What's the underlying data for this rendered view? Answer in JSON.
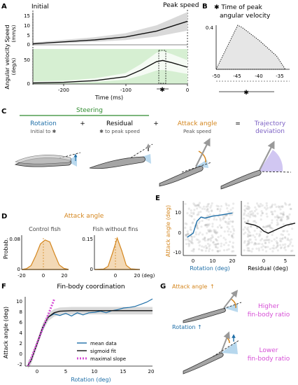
{
  "colors": {
    "orange": "#d4861e",
    "blue": "#1f6fa8",
    "green": "#2e8b2e",
    "purple": "#7d62c4",
    "magenta": "#d64fd6",
    "grey_band": "#d9d9d9",
    "green_band": "#d6efd2"
  },
  "panel_letters": {
    "a": "A",
    "b": "B",
    "c": "C",
    "d": "D",
    "e": "E",
    "f": "F",
    "g": "G"
  },
  "panel_a": {
    "initial_label": "Initial",
    "peak_label": "Peak speed",
    "speed_ylabel": "Speed",
    "speed_yunit": "(mm/s)",
    "speed_ticks": [
      "0",
      "5",
      "10",
      "15"
    ],
    "ang_ylabel": "Angular velocity",
    "ang_yunit": "(deg/s)",
    "ang_ticks": [
      "0",
      "50"
    ],
    "x_ticks": [
      "-200",
      "-100",
      "0"
    ],
    "xlabel": "Time (ms)",
    "marker": "✱"
  },
  "panel_b": {
    "title_line1": "✱ Time of peak",
    "title_line2": "angular velocity",
    "y_tick": "0.4",
    "x_ticks": [
      "-50",
      "-45",
      "-40",
      "-35"
    ],
    "marker": "✱"
  },
  "panel_c": {
    "steering": "Steering",
    "rotation": "Rotation",
    "rotation_sub": "Initial to ✱",
    "plus1": "+",
    "residual": "Residual",
    "residual_sub": "✱ to peak speed",
    "plus2": "+",
    "attack": "Attack angle",
    "attack_sub": "Peak speed",
    "equals": "=",
    "trajectory1": "Trajectory",
    "trajectory2": "deviation"
  },
  "panel_d": {
    "title": "Attack angle",
    "control": "Control fish",
    "without": "Fish without fins",
    "ylabel": "Probab.",
    "y1_tick": "0.08",
    "y2_tick": "0.15",
    "y_zero": "0",
    "x_ticks1": [
      "-20",
      "0",
      "20"
    ],
    "x_ticks2": [
      "0",
      "20"
    ],
    "xunit": "(deg)"
  },
  "panel_e": {
    "ylabel": "Attack angle (deg)",
    "y_ticks": [
      "10",
      "0",
      "-10"
    ],
    "xlabel1": "Rotation (deg)",
    "xlabel2": "Residual (deg)",
    "x_ticks1": [
      "0",
      "10",
      "20"
    ],
    "x_ticks2": [
      "0",
      "5"
    ]
  },
  "panel_f": {
    "title": "Fin-body coordination",
    "ylabel": "Attack angle (deg)",
    "y_ticks": [
      "10",
      "8",
      "6",
      "4",
      "2",
      "0",
      "-2"
    ],
    "x_ticks": [
      "0",
      "5",
      "10",
      "15",
      "20"
    ],
    "xlabel": "Rotation (deg)",
    "legend": [
      "mean data",
      "sigmoid fit",
      "maximal slope"
    ]
  },
  "panel_g": {
    "attack": "Attack angle",
    "rotation": "Rotation",
    "arrow_up": "↑",
    "higher1": "Higher",
    "higher2": "fin-body ratio",
    "lower1": "Lower",
    "lower2": "fin-body ratio"
  },
  "chart_data": [
    {
      "type": "line",
      "panel": "A-speed",
      "ylabel": "Speed (mm/s)",
      "xlabel": "Time (ms)",
      "xlim": [
        -250,
        0
      ],
      "ylim": [
        0,
        15
      ],
      "x": [
        -250,
        -200,
        -150,
        -100,
        -75,
        -50,
        -25,
        0
      ],
      "values": [
        0.5,
        1.5,
        2.5,
        4,
        5.5,
        7,
        9.5,
        12
      ]
    },
    {
      "type": "line",
      "panel": "A-angular",
      "ylabel": "Angular velocity (deg/s)",
      "xlabel": "Time (ms)",
      "xlim": [
        -250,
        0
      ],
      "ylim": [
        0,
        60
      ],
      "x": [
        -250,
        -200,
        -150,
        -100,
        -75,
        -50,
        -40,
        -25,
        0
      ],
      "values": [
        2,
        3,
        6,
        13,
        25,
        40,
        42,
        38,
        30
      ]
    },
    {
      "type": "area",
      "panel": "B",
      "title": "✱ Time of peak angular velocity",
      "xlim": [
        -50,
        -33
      ],
      "ylim": [
        0,
        0.4
      ],
      "x": [
        -50,
        -45,
        -44,
        -40,
        -36,
        -34
      ],
      "values": [
        0,
        0.4,
        0.38,
        0.26,
        0.12,
        0
      ]
    },
    {
      "type": "area",
      "panel": "D-control",
      "title": "Control fish",
      "ylabel": "Probab.",
      "xlabel": "(deg)",
      "xlim": [
        -25,
        25
      ],
      "ylim": [
        0,
        0.08
      ],
      "x": [
        -25,
        -20,
        -15,
        -10,
        -5,
        0,
        5,
        10,
        15,
        20,
        25
      ],
      "values": [
        0,
        0.002,
        0.01,
        0.035,
        0.065,
        0.075,
        0.07,
        0.04,
        0.012,
        0.003,
        0
      ]
    },
    {
      "type": "area",
      "panel": "D-nofins",
      "title": "Fish without fins",
      "xlabel": "(deg)",
      "xlim": [
        -25,
        25
      ],
      "ylim": [
        0,
        0.15
      ],
      "x": [
        -25,
        -15,
        -10,
        -5,
        0,
        5,
        10,
        15,
        25
      ],
      "values": [
        0,
        0.002,
        0.015,
        0.08,
        0.15,
        0.09,
        0.02,
        0.003,
        0
      ]
    },
    {
      "type": "line",
      "panel": "E-rotation",
      "ylabel": "Attack angle (deg)",
      "xlabel": "Rotation (deg)",
      "xlim": [
        -5,
        22
      ],
      "ylim": [
        -12,
        15
      ],
      "x": [
        -3,
        0,
        2,
        4,
        6,
        10,
        14,
        20
      ],
      "values": [
        -3,
        -1,
        5,
        7,
        6.5,
        7.5,
        8,
        9
      ]
    },
    {
      "type": "line",
      "panel": "E-residual",
      "xlabel": "Residual (deg)",
      "xlim": [
        -4,
        8
      ],
      "ylim": [
        -12,
        15
      ],
      "x": [
        -3,
        -1,
        0,
        1,
        2,
        4,
        6,
        8
      ],
      "values": [
        4,
        3,
        2,
        0,
        -1,
        1,
        3,
        4
      ]
    },
    {
      "type": "line",
      "panel": "F",
      "title": "Fin-body coordination",
      "ylabel": "Attack angle (deg)",
      "xlabel": "Rotation (deg)",
      "xlim": [
        -2,
        20
      ],
      "ylim": [
        -2,
        11
      ],
      "series": [
        {
          "name": "mean data",
          "x": [
            -1.5,
            -1,
            0,
            1,
            2,
            3,
            4,
            5,
            6,
            7,
            8,
            9,
            10,
            11,
            12,
            13,
            14,
            15,
            16,
            17,
            18,
            19,
            20
          ],
          "values": [
            -1.8,
            -1,
            2,
            5,
            7.2,
            7.8,
            7.5,
            7.9,
            7.4,
            8,
            7.6,
            8,
            8.1,
            8.3,
            8,
            8.4,
            8.6,
            8.9,
            9,
            9.2,
            9.6,
            10,
            10.6
          ]
        },
        {
          "name": "sigmoid fit",
          "x": [
            -1.5,
            -1,
            0,
            1,
            2,
            3,
            4,
            6,
            10,
            20
          ],
          "values": [
            -1.8,
            -1,
            2,
            5.2,
            7.2,
            8,
            8.3,
            8.4,
            8.4,
            8.4
          ]
        },
        {
          "name": "maximal slope",
          "x": [
            -1.5,
            3
          ],
          "values": [
            -2,
            10.5
          ]
        }
      ]
    }
  ]
}
